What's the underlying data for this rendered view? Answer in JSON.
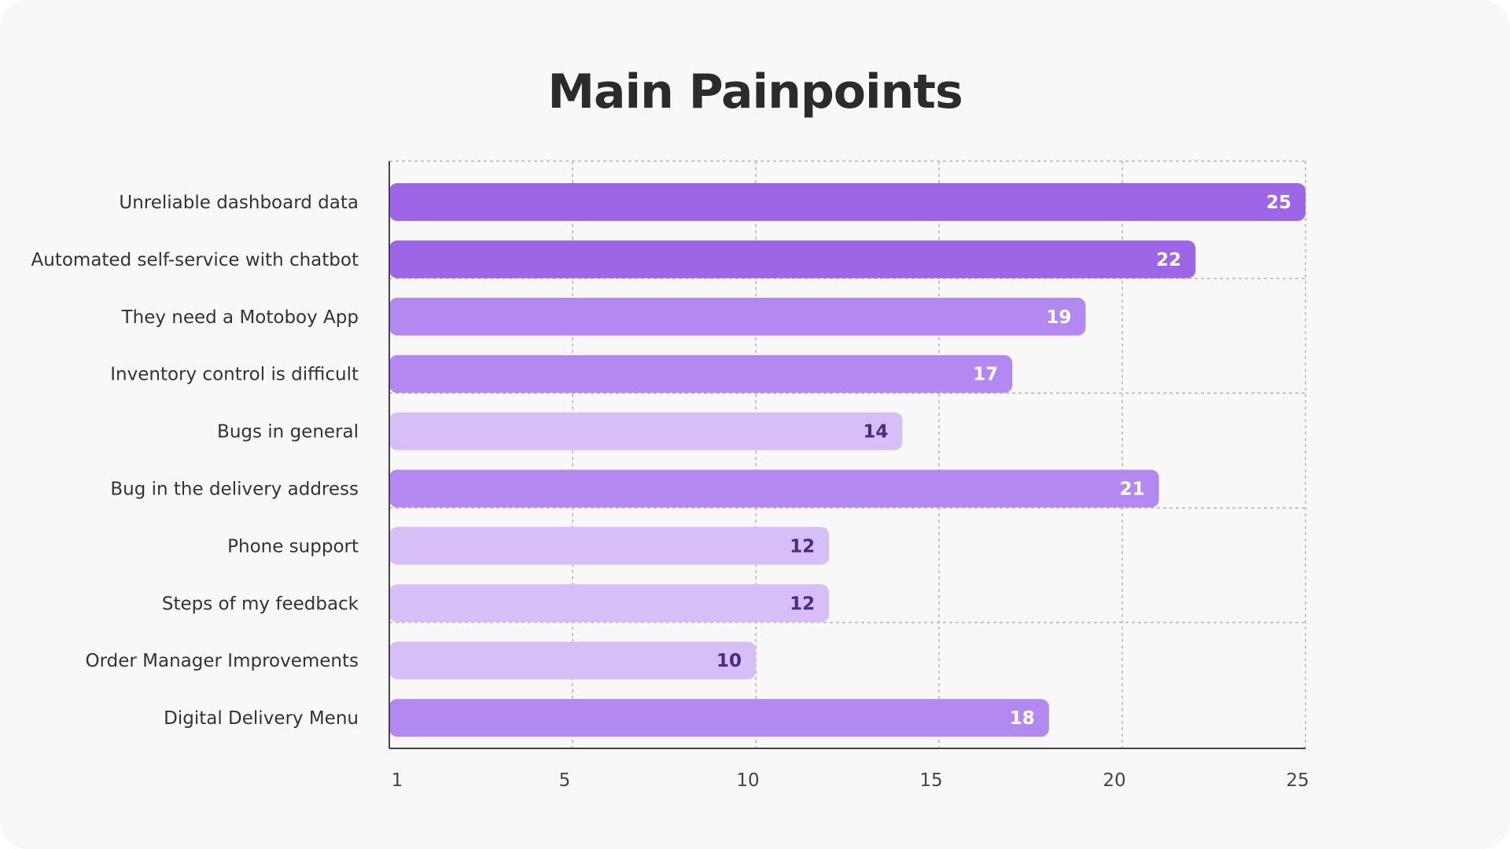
{
  "chart_data": {
    "type": "bar",
    "orientation": "horizontal",
    "title": "Main Painpoints",
    "xlabel": "",
    "ylabel": "",
    "categories": [
      "Unreliable dashboard data",
      "Automated self-service with chatbot",
      "They need a Motoboy App",
      "Inventory control is difficult",
      "Bugs in general",
      "Bug in the delivery address",
      "Phone support",
      "Steps of my feedback",
      "Order Manager Improvements",
      "Digital Delivery Menu"
    ],
    "values": [
      25,
      22,
      19,
      17,
      14,
      21,
      12,
      12,
      10,
      18
    ],
    "xticks": [
      1,
      5,
      10,
      15,
      20,
      25
    ],
    "xlim": [
      0,
      25
    ],
    "grid": true,
    "legend": "none",
    "colors": {
      "strong": "#9d66e6",
      "medium": "#b388f0",
      "light": "#d6bff6",
      "label_on_dark": "#ffffff",
      "label_on_light": "#4a2a82",
      "grid": "#b5b5b5",
      "axis": "#444444"
    }
  }
}
